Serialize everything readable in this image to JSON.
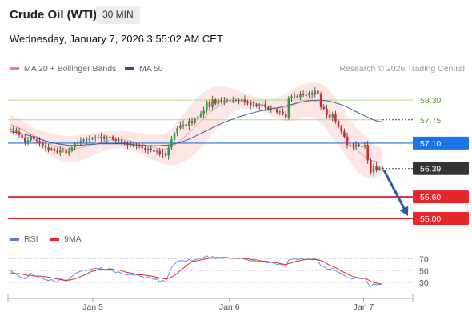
{
  "header": {
    "instrument": "Crude Oil (WTI)",
    "timeframe": "30 MIN",
    "datetime": "Wednesday, January 7, 2026 3:55:02 AM CET"
  },
  "legend": {
    "items": [
      {
        "label": "MA 20 + Bollinger Bands",
        "color": "#f08080"
      },
      {
        "label": "MA 50",
        "color": "#2b4f8a"
      }
    ],
    "credit": "Research © 2026 Trading Central"
  },
  "rsi_legend": {
    "items": [
      {
        "label": "RSI",
        "color": "#5b7fd6"
      },
      {
        "label": "9MA",
        "color": "#e8252b"
      }
    ]
  },
  "chart_data": [
    {
      "type": "candlestick",
      "x_tick_labels": [
        "Jan 5",
        "Jan 6",
        "Jan 7"
      ],
      "price_levels": [
        {
          "value": 58.3,
          "label": "58.30",
          "kind": "resistance",
          "color": "#b5d98a"
        },
        {
          "value": 57.75,
          "label": "57.75",
          "kind": "resistance",
          "color": "#b5d98a"
        },
        {
          "value": 57.1,
          "label": "57.10",
          "kind": "pivot",
          "color": "#1a73e8"
        },
        {
          "value": 56.39,
          "label": "56.39",
          "kind": "last-price",
          "color": "#333333"
        },
        {
          "value": 55.6,
          "label": "55.60",
          "kind": "target",
          "color": "#e8252b"
        },
        {
          "value": 55.0,
          "label": "55.00",
          "kind": "target",
          "color": "#e8252b"
        }
      ],
      "ylim": [
        54.8,
        58.95
      ],
      "close": [
        57.5,
        57.45,
        57.42,
        57.33,
        57.26,
        57.12,
        57.18,
        57.3,
        57.2,
        57.16,
        57.1,
        57.02,
        56.98,
        56.92,
        56.95,
        56.88,
        56.84,
        56.92,
        56.9,
        56.82,
        56.88,
        56.98,
        57.08,
        57.12,
        57.16,
        57.2,
        57.18,
        57.22,
        57.24,
        57.26,
        57.24,
        57.28,
        57.22,
        57.24,
        57.28,
        57.2,
        57.16,
        57.18,
        57.12,
        57.08,
        57.05,
        57.06,
        57.02,
        57.04,
        57.0,
        56.96,
        56.9,
        56.95,
        56.92,
        56.86,
        56.88,
        56.78,
        56.82,
        56.75,
        56.98,
        57.2,
        57.38,
        57.52,
        57.6,
        57.62,
        57.58,
        57.72,
        57.66,
        57.78,
        57.84,
        57.9,
        58.0,
        58.24,
        58.1,
        58.32,
        58.2,
        58.3,
        58.26,
        58.28,
        58.31,
        58.29,
        58.3,
        58.3,
        58.27,
        58.32,
        58.26,
        58.22,
        58.16,
        58.18,
        58.13,
        58.16,
        58.18,
        58.1,
        58.06,
        58.08,
        58.05,
        57.96,
        57.98,
        57.92,
        57.82,
        58.36,
        58.4,
        58.42,
        58.38,
        58.48,
        58.44,
        58.43,
        58.5,
        58.45,
        58.56,
        58.47,
        58.1,
        58.06,
        57.88,
        57.82,
        57.9,
        57.72,
        57.55,
        57.42,
        57.28,
        57.05,
        57.03,
        57.0,
        57.06,
        57.02,
        56.99,
        57.05,
        56.62,
        56.28,
        56.46,
        56.36,
        56.42,
        56.39
      ],
      "ma20": [
        57.62,
        57.59,
        57.56,
        57.52,
        57.48,
        57.43,
        57.39,
        57.35,
        57.31,
        57.27,
        57.22,
        57.18,
        57.13,
        57.09,
        57.05,
        57.02,
        56.99,
        56.97,
        56.95,
        56.94,
        56.93,
        56.93,
        56.94,
        56.95,
        56.97,
        56.99,
        57.01,
        57.04,
        57.06,
        57.09,
        57.11,
        57.13,
        57.15,
        57.16,
        57.18,
        57.19,
        57.2,
        57.2,
        57.2,
        57.19,
        57.18,
        57.16,
        57.14,
        57.12,
        57.1,
        57.08,
        57.05,
        57.03,
        57.0,
        56.98,
        56.96,
        56.94,
        56.94,
        56.94,
        56.96,
        56.99,
        57.04,
        57.1,
        57.17,
        57.24,
        57.31,
        57.39,
        57.47,
        57.55,
        57.63,
        57.71,
        57.79,
        57.87,
        57.94,
        58.01,
        58.07,
        58.12,
        58.17,
        58.21,
        58.24,
        58.27,
        58.28,
        58.29,
        58.29,
        58.29,
        58.27,
        58.26,
        58.24,
        58.22,
        58.2,
        58.18,
        58.16,
        58.14,
        58.12,
        58.1,
        58.09,
        58.08,
        58.08,
        58.09,
        58.1,
        58.12,
        58.15,
        58.18,
        58.22,
        58.25,
        58.28,
        58.3,
        58.31,
        58.3,
        58.28,
        58.24,
        58.19,
        58.13,
        58.05,
        57.96,
        57.86,
        57.75,
        57.63,
        57.51,
        57.39,
        57.27,
        57.16,
        57.05,
        56.95,
        56.86,
        56.79,
        56.72,
        56.67,
        56.63,
        56.6,
        56.59,
        56.58,
        56.58
      ],
      "ma50": [
        57.42,
        57.41,
        57.4,
        57.38,
        57.36,
        57.34,
        57.32,
        57.29,
        57.27,
        57.24,
        57.21,
        57.19,
        57.16,
        57.14,
        57.12,
        57.1,
        57.08,
        57.07,
        57.06,
        57.05,
        57.04,
        57.04,
        57.04,
        57.04,
        57.05,
        57.05,
        57.06,
        57.06,
        57.07,
        57.07,
        57.08,
        57.08,
        57.08,
        57.08,
        57.08,
        57.08,
        57.08,
        57.08,
        57.08,
        57.08,
        57.07,
        57.07,
        57.06,
        57.05,
        57.05,
        57.04,
        57.04,
        57.03,
        57.03,
        57.03,
        57.03,
        57.03,
        57.04,
        57.04,
        57.05,
        57.06,
        57.08,
        57.1,
        57.12,
        57.15,
        57.18,
        57.21,
        57.25,
        57.29,
        57.33,
        57.37,
        57.41,
        57.45,
        57.49,
        57.53,
        57.57,
        57.61,
        57.64,
        57.68,
        57.71,
        57.74,
        57.77,
        57.8,
        57.83,
        57.86,
        57.88,
        57.91,
        57.93,
        57.95,
        57.97,
        57.99,
        58.01,
        58.02,
        58.04,
        58.05,
        58.07,
        58.08,
        58.1,
        58.12,
        58.14,
        58.16,
        58.18,
        58.2,
        58.22,
        58.24,
        58.25,
        58.27,
        58.28,
        58.29,
        58.29,
        58.3,
        58.29,
        58.29,
        58.28,
        58.26,
        58.25,
        58.22,
        58.2,
        58.17,
        58.14,
        58.1,
        58.06,
        58.02,
        57.98,
        57.94,
        57.9,
        57.86,
        57.82,
        57.78,
        57.75,
        57.72,
        57.7,
        57.7
      ],
      "bb_upper": [
        57.88,
        57.84,
        57.8,
        57.76,
        57.72,
        57.67,
        57.62,
        57.57,
        57.53,
        57.49,
        57.46,
        57.43,
        57.41,
        57.39,
        57.37,
        57.35,
        57.33,
        57.32,
        57.31,
        57.3,
        57.3,
        57.3,
        57.31,
        57.32,
        57.33,
        57.34,
        57.35,
        57.37,
        57.38,
        57.39,
        57.4,
        57.41,
        57.42,
        57.43,
        57.43,
        57.44,
        57.44,
        57.44,
        57.44,
        57.44,
        57.43,
        57.42,
        57.41,
        57.4,
        57.39,
        57.38,
        57.37,
        57.36,
        57.35,
        57.34,
        57.34,
        57.34,
        57.35,
        57.37,
        57.42,
        57.5,
        57.6,
        57.7,
        57.8,
        57.9,
        58.0,
        58.1,
        58.2,
        58.3,
        58.38,
        58.46,
        58.52,
        58.58,
        58.62,
        58.66,
        58.68,
        58.69,
        58.69,
        58.68,
        58.66,
        58.64,
        58.61,
        58.58,
        58.55,
        58.52,
        58.49,
        58.46,
        58.43,
        58.4,
        58.38,
        58.36,
        58.35,
        58.34,
        58.34,
        58.35,
        58.36,
        58.38,
        58.4,
        58.44,
        58.48,
        58.53,
        58.58,
        58.63,
        58.67,
        58.71,
        58.74,
        58.77,
        58.78,
        58.79,
        58.79,
        58.78,
        58.75,
        58.71,
        58.65,
        58.56,
        58.46,
        58.35,
        58.22,
        58.1,
        57.98,
        57.86,
        57.75,
        57.64,
        57.54,
        57.46,
        57.38,
        57.3,
        57.22,
        57.14,
        57.08,
        57.02,
        56.98,
        56.96
      ],
      "bb_lower": [
        57.36,
        57.34,
        57.32,
        57.28,
        57.24,
        57.19,
        57.16,
        57.13,
        57.09,
        57.05,
        56.98,
        56.93,
        56.85,
        56.79,
        56.73,
        56.69,
        56.65,
        56.62,
        56.59,
        56.58,
        56.56,
        56.56,
        56.57,
        56.58,
        56.61,
        56.64,
        56.67,
        56.71,
        56.74,
        56.79,
        56.82,
        56.85,
        56.88,
        56.89,
        56.93,
        56.94,
        56.96,
        56.96,
        56.96,
        56.94,
        56.93,
        56.9,
        56.87,
        56.84,
        56.81,
        56.78,
        56.73,
        56.7,
        56.65,
        56.62,
        56.58,
        56.54,
        56.53,
        56.51,
        56.5,
        56.48,
        56.48,
        56.5,
        56.54,
        56.58,
        56.62,
        56.68,
        56.74,
        56.8,
        56.88,
        56.96,
        57.06,
        57.16,
        57.26,
        57.36,
        57.46,
        57.55,
        57.65,
        57.74,
        57.82,
        57.9,
        57.95,
        58.0,
        58.03,
        58.06,
        58.05,
        58.06,
        58.05,
        58.04,
        58.02,
        58.0,
        57.97,
        57.94,
        57.9,
        57.85,
        57.82,
        57.78,
        57.76,
        57.74,
        57.72,
        57.71,
        57.72,
        57.73,
        57.77,
        57.79,
        57.82,
        57.83,
        57.84,
        57.81,
        57.77,
        57.7,
        57.63,
        57.55,
        57.45,
        57.36,
        57.26,
        57.15,
        57.04,
        56.92,
        56.8,
        56.68,
        56.57,
        56.46,
        56.36,
        56.26,
        56.2,
        56.14,
        56.12,
        56.12,
        56.12,
        56.16,
        56.18,
        56.2
      ],
      "y_label": "",
      "title": ""
    },
    {
      "type": "line",
      "name": "RSI",
      "y_tick_labels": [
        "70",
        "50",
        "30"
      ],
      "ylim": [
        10,
        80
      ],
      "rsi": [
        50,
        47,
        44,
        40,
        38,
        36,
        40,
        46,
        42,
        40,
        38,
        36,
        35,
        33,
        35,
        32,
        31,
        36,
        35,
        32,
        36,
        40,
        45,
        47,
        49,
        51,
        50,
        52,
        53,
        54,
        53,
        55,
        51,
        52,
        54,
        49,
        47,
        48,
        45,
        44,
        43,
        44,
        42,
        43,
        41,
        40,
        37,
        40,
        38,
        35,
        36,
        31,
        34,
        30,
        44,
        55,
        61,
        65,
        67,
        67,
        65,
        69,
        66,
        68,
        70,
        71,
        72,
        75,
        71,
        74,
        70,
        72,
        71,
        71,
        72,
        71,
        71,
        71,
        70,
        71,
        69,
        68,
        66,
        67,
        65,
        66,
        66,
        64,
        63,
        64,
        63,
        60,
        61,
        59,
        56,
        68,
        69,
        70,
        68,
        70,
        69,
        68,
        70,
        68,
        70,
        67,
        58,
        57,
        53,
        52,
        54,
        50,
        47,
        45,
        42,
        38,
        37,
        36,
        38,
        37,
        36,
        38,
        29,
        23,
        28,
        26,
        27,
        27
      ],
      "rsi_ma9": [
        46,
        46,
        45,
        45,
        44,
        43,
        42,
        42,
        41,
        41,
        41,
        40,
        40,
        39,
        38,
        37,
        36,
        35,
        34,
        34,
        34,
        35,
        36,
        38,
        40,
        42,
        44,
        47,
        49,
        50,
        52,
        52,
        52,
        52,
        53,
        52,
        51,
        51,
        50,
        48,
        47,
        46,
        45,
        44,
        43,
        43,
        42,
        42,
        41,
        40,
        39,
        38,
        37,
        36,
        37,
        39,
        42,
        46,
        50,
        54,
        58,
        62,
        65,
        66,
        67,
        68,
        69,
        70,
        71,
        71,
        72,
        72,
        72,
        72,
        72,
        71,
        71,
        71,
        71,
        71,
        70,
        70,
        69,
        68,
        68,
        67,
        66,
        66,
        65,
        64,
        64,
        63,
        62,
        61,
        60,
        62,
        63,
        65,
        66,
        67,
        68,
        69,
        69,
        69,
        69,
        68,
        67,
        65,
        62,
        59,
        57,
        55,
        52,
        49,
        47,
        44,
        42,
        40,
        39,
        38,
        37,
        37,
        35,
        32,
        30,
        29,
        28,
        27
      ]
    }
  ]
}
